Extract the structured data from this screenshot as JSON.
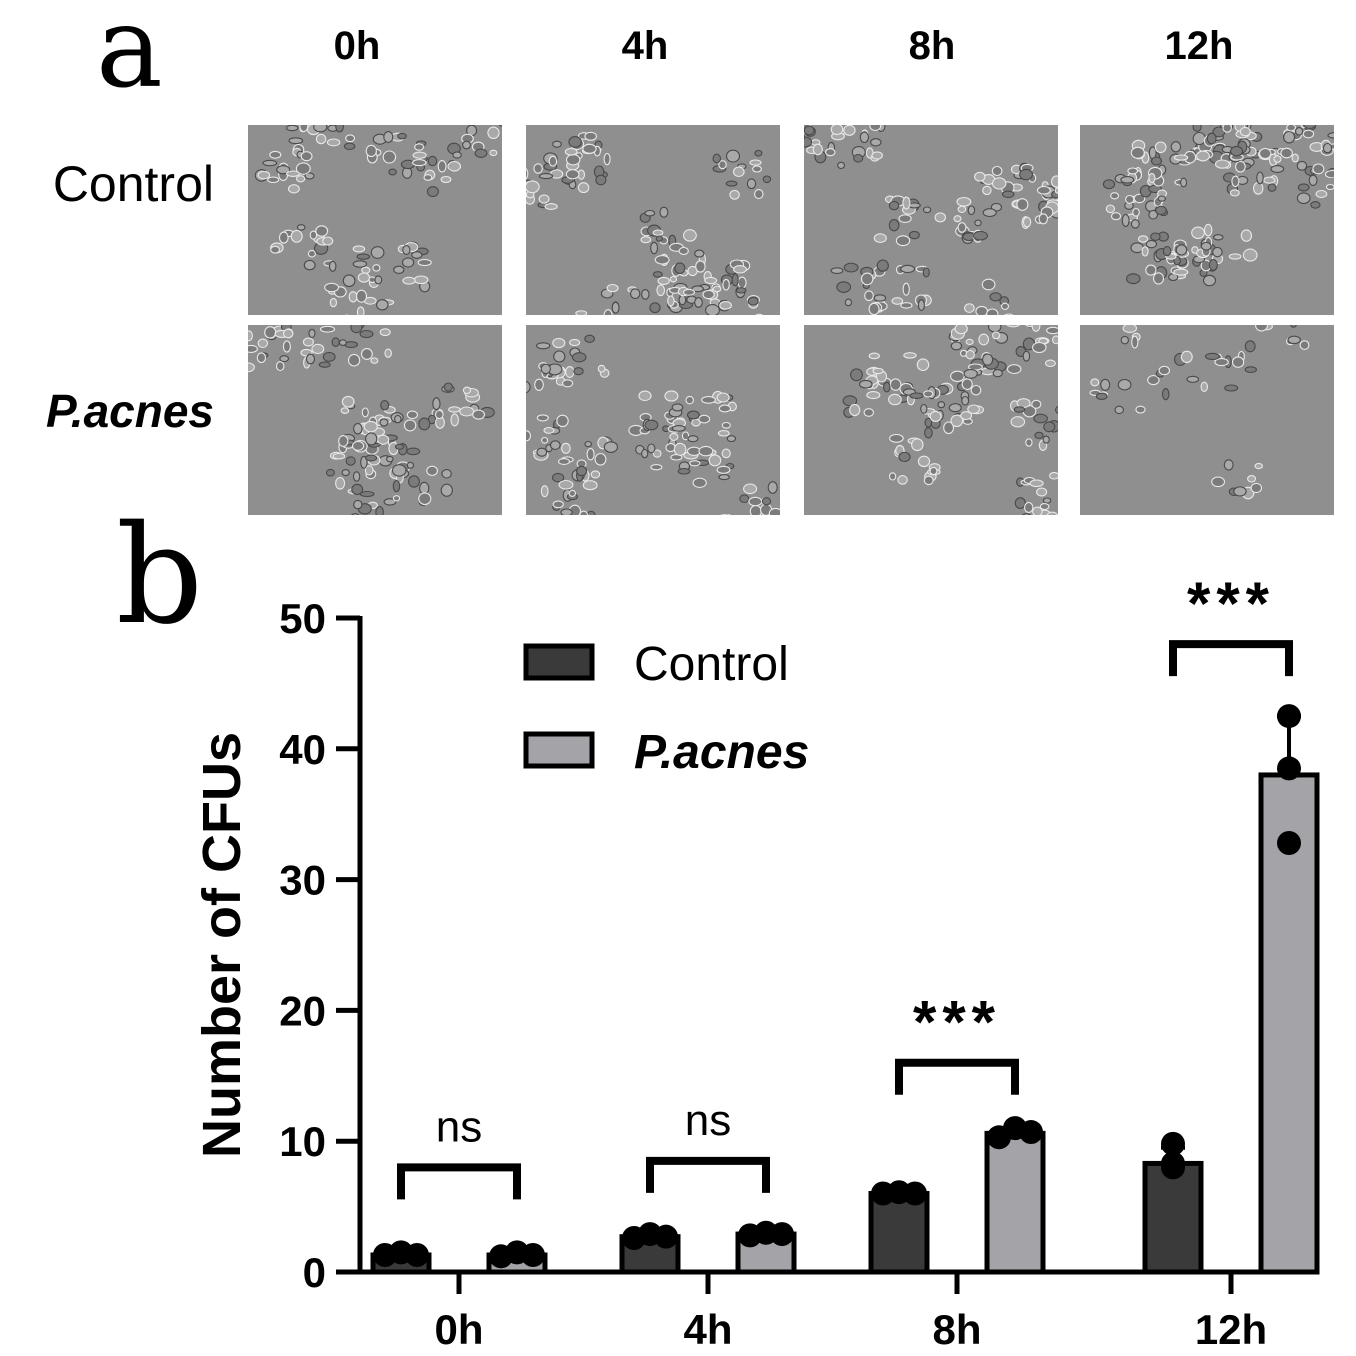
{
  "panel_a": {
    "letter": "a",
    "columns": [
      "0h",
      "4h",
      "8h",
      "12h"
    ],
    "rows": [
      "Control",
      "P.acnes"
    ],
    "images": [
      {
        "row": 0,
        "col": 0,
        "density": 0.55
      },
      {
        "row": 0,
        "col": 1,
        "density": 0.55
      },
      {
        "row": 0,
        "col": 2,
        "density": 0.6
      },
      {
        "row": 0,
        "col": 3,
        "density": 0.75
      },
      {
        "row": 1,
        "col": 0,
        "density": 0.55
      },
      {
        "row": 1,
        "col": 1,
        "density": 0.6
      },
      {
        "row": 1,
        "col": 2,
        "density": 0.55
      },
      {
        "row": 1,
        "col": 3,
        "density": 0.15
      }
    ]
  },
  "panel_b": {
    "letter": "b"
  },
  "colors": {
    "control": "#3a3a3a",
    "pacnes": "#a3a3a8",
    "axis": "#000000"
  },
  "chart_data": {
    "type": "bar",
    "ylabel": "Number of CFUs",
    "ylim": [
      0,
      50
    ],
    "yticks": [
      0,
      10,
      20,
      30,
      40,
      50
    ],
    "categories": [
      "0h",
      "4h",
      "8h",
      "12h"
    ],
    "legend_placement": "top-center",
    "series": [
      {
        "name": "Control",
        "values": [
          1.3,
          2.7,
          6.0,
          8.3
        ],
        "sd": [
          0.2,
          0.2,
          0.1,
          1.2
        ],
        "points": [
          [
            1.3,
            1.5,
            1.3
          ],
          [
            2.6,
            2.9,
            2.7
          ],
          [
            6.0,
            6.1,
            6.0
          ],
          [
            8.0,
            9.8,
            8.3
          ]
        ]
      },
      {
        "name": "P.acnes",
        "values": [
          1.3,
          2.9,
          10.6,
          38.0
        ],
        "sd": [
          0.2,
          0.2,
          0.4,
          4.5
        ],
        "points": [
          [
            1.2,
            1.5,
            1.3
          ],
          [
            2.8,
            3.0,
            2.9
          ],
          [
            10.3,
            11.0,
            10.7
          ],
          [
            42.5,
            38.5,
            32.8
          ]
        ]
      }
    ],
    "significance": [
      {
        "category": "0h",
        "label": "ns",
        "height": 8
      },
      {
        "category": "4h",
        "label": "ns",
        "height": 8.5
      },
      {
        "category": "8h",
        "label": "***",
        "height": 16
      },
      {
        "category": "12h",
        "label": "***",
        "height": 48
      }
    ]
  }
}
